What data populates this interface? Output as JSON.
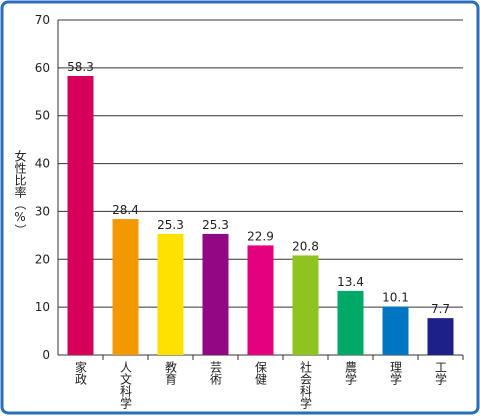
{
  "chart_data": {
    "type": "bar",
    "ylabel": "女性比率（%）",
    "categories": [
      "家政",
      "人文科学",
      "教育",
      "芸術",
      "保健",
      "社会科学",
      "農学",
      "理学",
      "工学"
    ],
    "values": [
      58.3,
      28.4,
      25.3,
      25.3,
      22.9,
      20.8,
      13.4,
      10.1,
      7.7
    ],
    "colors": [
      "#d6005a",
      "#f39800",
      "#ffe100",
      "#920783",
      "#e4007f",
      "#8fc31f",
      "#00a968",
      "#0075c2",
      "#1d2088"
    ],
    "ylim": [
      0,
      70
    ],
    "yticks": [
      0,
      10,
      20,
      30,
      40,
      50,
      60,
      70
    ],
    "grid": true
  }
}
